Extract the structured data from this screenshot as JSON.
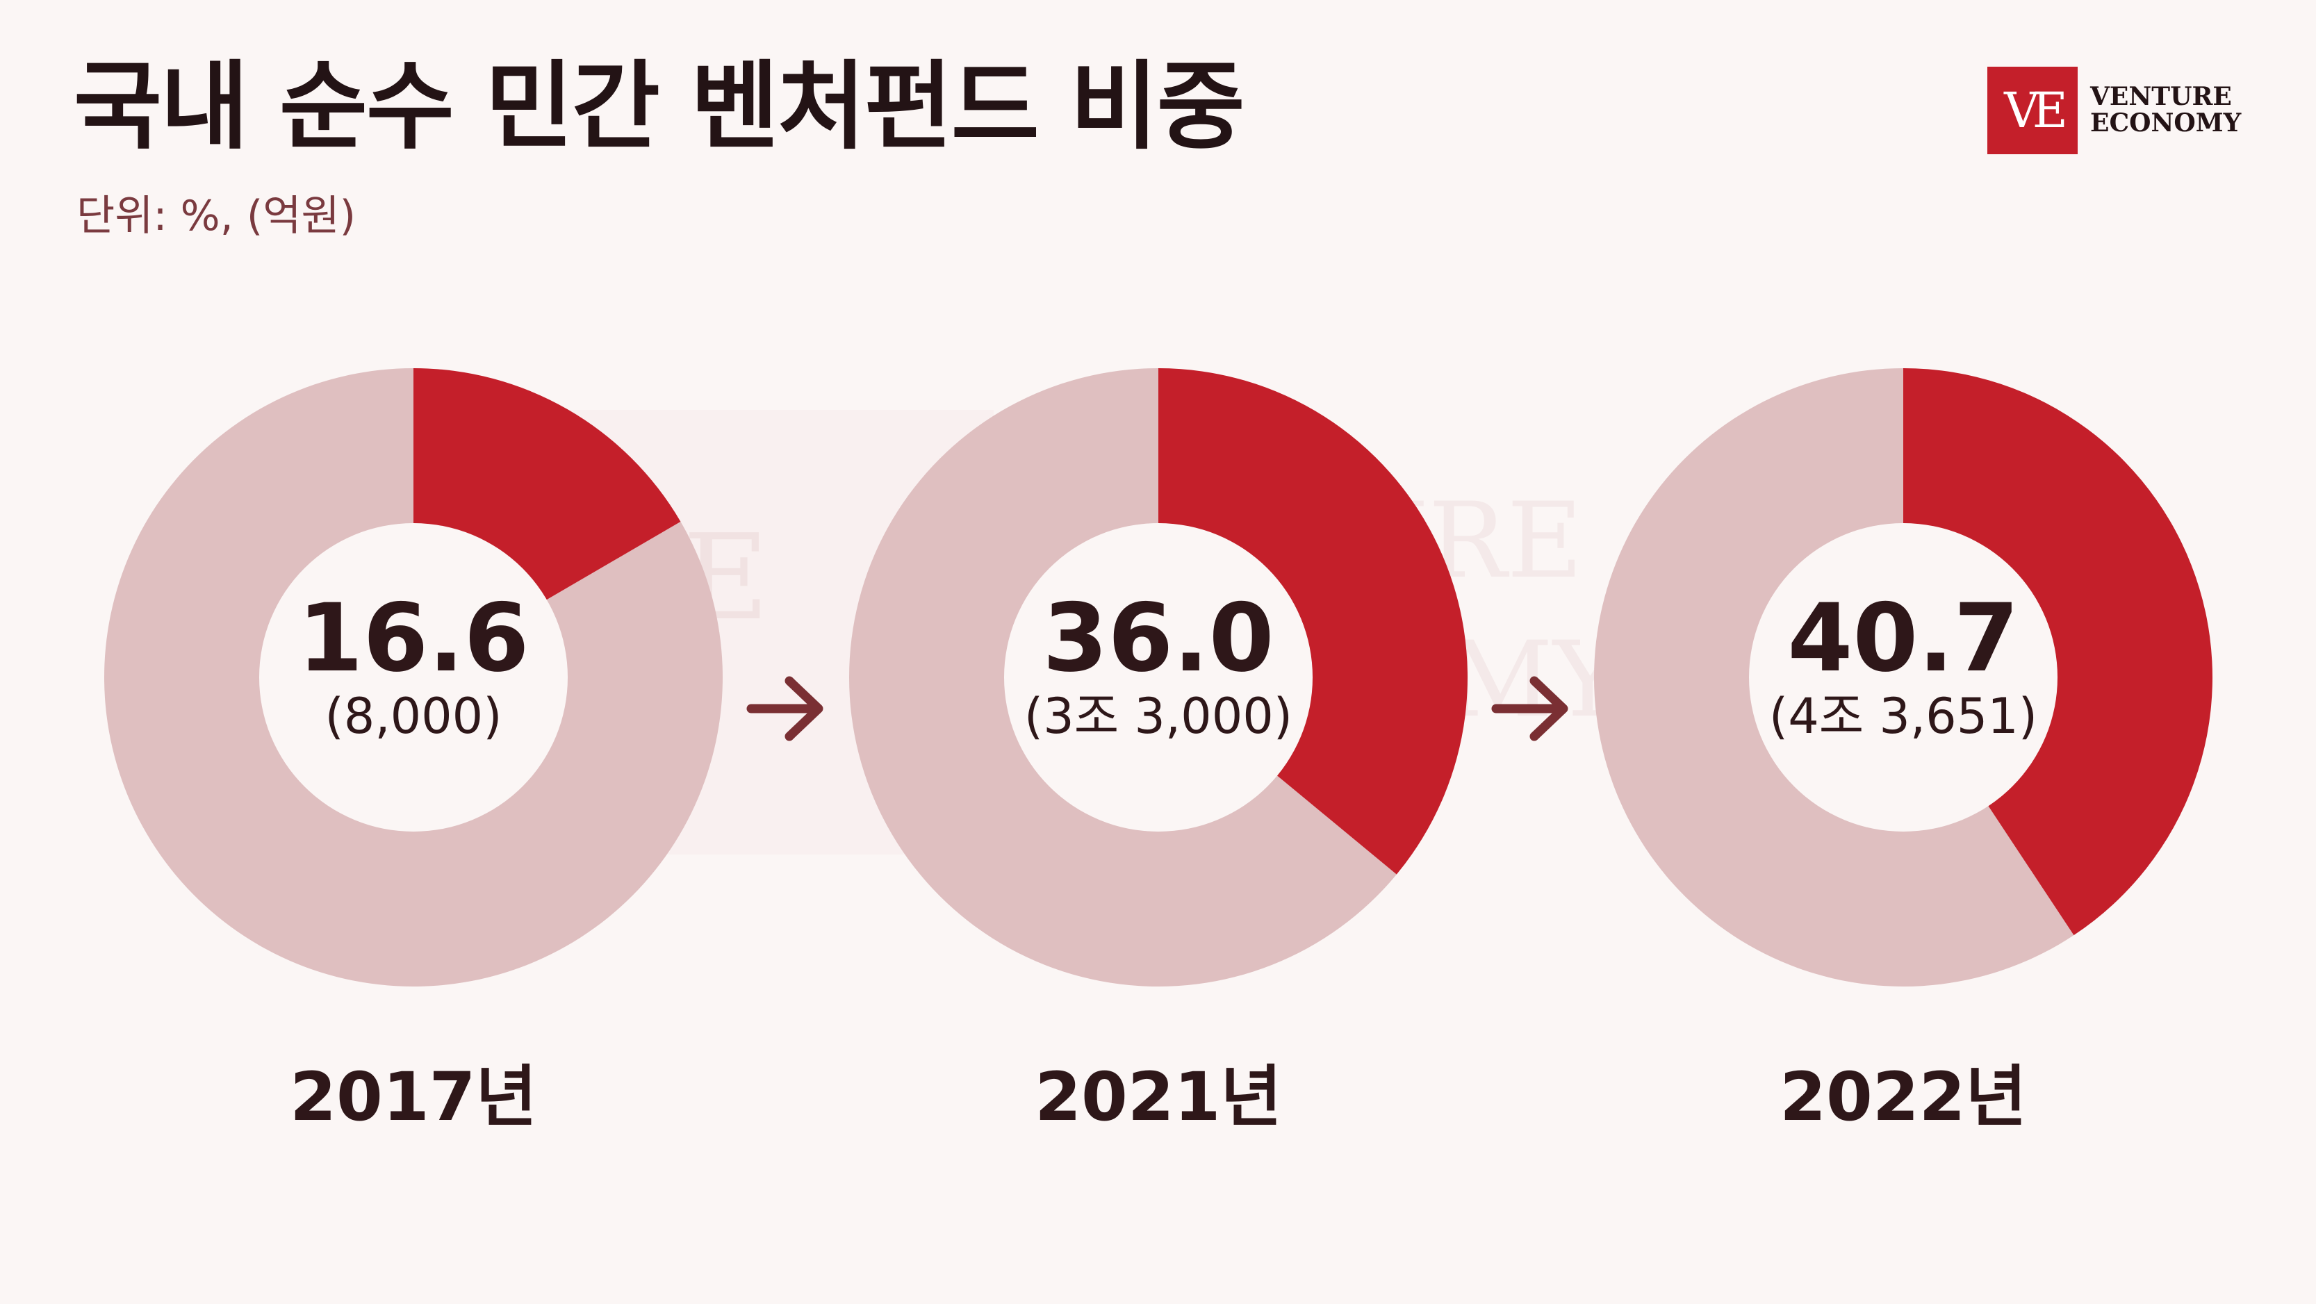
{
  "title": "국내 순수 민간 벤처펀드 비중",
  "unit": "단위: %, (억원)",
  "logo": {
    "mark": "VE",
    "line1": "VENTURE",
    "line2": "ECONOMY"
  },
  "colors": {
    "highlight": "#C41F2A",
    "remainder": "#DFBFC0",
    "hole": "#FBF6F5",
    "text": "#2E1719",
    "arrow": "#7A2F33"
  },
  "chart_data": [
    {
      "type": "pie",
      "variant": "donut",
      "category": "2017년",
      "value": 16.6,
      "value_label": "16.6",
      "amount_label": "(8,000)"
    },
    {
      "type": "pie",
      "variant": "donut",
      "category": "2021년",
      "value": 36.0,
      "value_label": "36.0",
      "amount_label": "(3조 3,000)"
    },
    {
      "type": "pie",
      "variant": "donut",
      "category": "2022년",
      "value": 40.7,
      "value_label": "40.7",
      "amount_label": "(4조 3,651)"
    }
  ]
}
